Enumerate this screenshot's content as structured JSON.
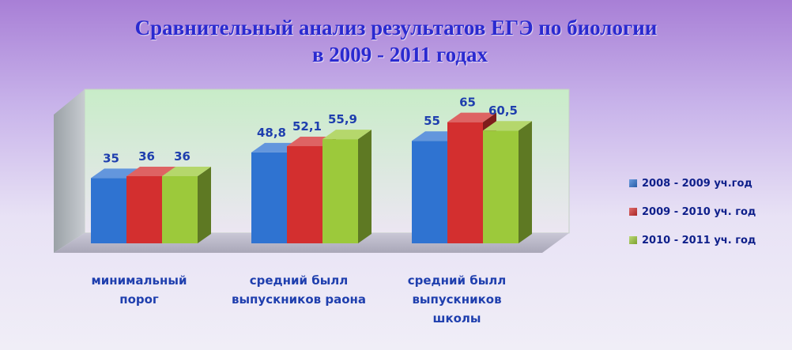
{
  "title_line1": "Сравнительный анализ результатов ЕГЭ  по биологии",
  "title_line2": "в 2009 - 2011 годах",
  "colors": {
    "blue": "#2f73d1",
    "red": "#d32f2f",
    "green": "#9cc93b"
  },
  "chart_data": {
    "type": "bar",
    "categories": [
      [
        "минимальный",
        "порог"
      ],
      [
        "средний былл",
        "выпускников раона"
      ],
      [
        "средний былл",
        "выпускников",
        "школы"
      ]
    ],
    "series": [
      {
        "name": "2008 - 2009 уч.год",
        "values": [
          35,
          48.8,
          55
        ],
        "labels": [
          "35",
          "48,8",
          "55"
        ]
      },
      {
        "name": "2009 - 2010 уч. год",
        "values": [
          36,
          52.1,
          65
        ],
        "labels": [
          "36",
          "52,1",
          "65"
        ]
      },
      {
        "name": "2010 - 2011 уч. год",
        "values": [
          36,
          55.9,
          60.5
        ],
        "labels": [
          "36",
          "55,9",
          "60,5"
        ]
      }
    ],
    "ylim": [
      0,
      70
    ],
    "grid": false,
    "legend": "right"
  }
}
